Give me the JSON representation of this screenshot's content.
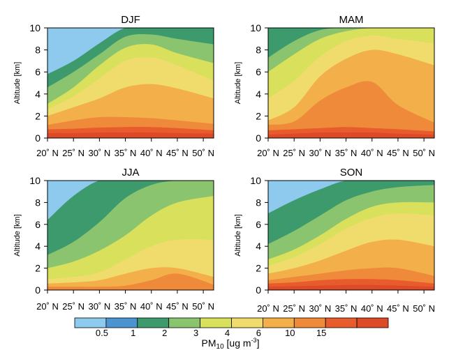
{
  "chart_data": [
    {
      "type": "heatmap",
      "title": "DJF",
      "ylabel": "Altitude [km]",
      "xlabel": "",
      "x_tick_labels": [
        "20˚ N",
        "25˚ N",
        "30˚ N",
        "35˚ N",
        "40˚ N",
        "45˚ N",
        "50˚ N"
      ],
      "y_tick_labels": [
        "0",
        "2",
        "4",
        "6",
        "8",
        "10"
      ],
      "xlim": [
        20,
        52
      ],
      "ylim": [
        0,
        10
      ],
      "x": [
        20,
        25,
        30,
        35,
        40,
        45,
        52
      ],
      "contour_heights_km": [
        [
          0.45,
          0.45,
          0.5,
          0.5,
          0.5,
          0.45,
          0.4
        ],
        [
          0.8,
          0.85,
          0.95,
          1.0,
          1.0,
          0.9,
          0.7
        ],
        [
          1.2,
          1.6,
          1.9,
          1.9,
          1.8,
          1.6,
          1.3
        ],
        [
          2.0,
          2.8,
          3.6,
          4.6,
          4.9,
          4.5,
          3.6
        ],
        [
          2.6,
          3.8,
          5.4,
          7.0,
          7.3,
          6.6,
          5.2
        ],
        [
          3.1,
          4.6,
          6.6,
          8.2,
          8.5,
          7.7,
          6.8
        ],
        [
          4.6,
          6.0,
          7.6,
          9.2,
          9.4,
          9.0,
          8.5
        ],
        [
          5.8,
          7.0,
          8.6,
          10.0,
          10.0,
          10.0,
          10.0
        ]
      ]
    },
    {
      "type": "heatmap",
      "title": "MAM",
      "ylabel": "Altitude [km]",
      "xlabel": "",
      "x_tick_labels": [
        "20˚ N",
        "25˚ N",
        "30˚ N",
        "35˚ N",
        "40˚ N",
        "45˚ N",
        "50˚ N"
      ],
      "y_tick_labels": [
        "0",
        "2",
        "4",
        "6",
        "8",
        "10"
      ],
      "xlim": [
        20,
        52
      ],
      "ylim": [
        0,
        10
      ],
      "x": [
        20,
        25,
        30,
        35,
        40,
        45,
        52
      ],
      "contour_heights_km": [
        [
          0.3,
          0.4,
          0.5,
          0.5,
          0.5,
          0.4,
          0.3
        ],
        [
          0.7,
          0.8,
          0.9,
          1.0,
          0.9,
          0.8,
          0.6
        ],
        [
          1.2,
          1.5,
          3.4,
          4.6,
          5.1,
          3.0,
          1.4
        ],
        [
          1.6,
          2.8,
          5.6,
          7.2,
          8.0,
          7.6,
          6.6
        ],
        [
          3.6,
          5.2,
          7.4,
          8.8,
          9.3,
          9.0,
          8.6
        ],
        [
          6.0,
          7.6,
          9.0,
          9.7,
          10.0,
          10.0,
          10.0
        ],
        [
          7.3,
          8.8,
          9.8,
          10.0,
          10.0,
          10.0,
          10.0
        ],
        [
          10.0,
          10.0,
          10.0,
          10.0,
          10.0,
          10.0,
          10.0
        ]
      ]
    },
    {
      "type": "heatmap",
      "title": "JJA",
      "ylabel": "Altitude [km]",
      "xlabel": "",
      "x_tick_labels": [
        "20˚ N",
        "25˚ N",
        "30˚ N",
        "35˚ N",
        "40˚ N",
        "45˚ N",
        "50˚ N"
      ],
      "y_tick_labels": [
        "0",
        "2",
        "4",
        "6",
        "8",
        "10"
      ],
      "xlim": [
        20,
        52
      ],
      "ylim": [
        0,
        10
      ],
      "x": [
        20,
        25,
        30,
        35,
        40,
        45,
        52
      ],
      "contour_heights_km": [
        [
          0.0,
          0.0,
          0.0,
          0.0,
          0.0,
          0.0,
          0.0
        ],
        [
          0.0,
          0.0,
          0.0,
          0.0,
          0.0,
          0.0,
          0.0
        ],
        [
          0.3,
          0.3,
          0.3,
          0.4,
          0.9,
          1.5,
          0.5
        ],
        [
          0.6,
          0.7,
          0.9,
          1.5,
          2.0,
          2.0,
          1.2
        ],
        [
          1.0,
          1.2,
          1.6,
          2.8,
          4.0,
          4.6,
          4.6
        ],
        [
          2.0,
          2.6,
          3.6,
          5.0,
          6.8,
          8.0,
          8.6
        ],
        [
          3.2,
          4.4,
          6.2,
          8.4,
          9.6,
          10.0,
          10.0
        ],
        [
          6.4,
          8.6,
          10.0,
          10.0,
          10.0,
          10.0,
          10.0
        ]
      ]
    },
    {
      "type": "heatmap",
      "title": "SON",
      "ylabel": "Altitude [km]",
      "xlabel": "",
      "x_tick_labels": [
        "20˚ N",
        "25˚ N",
        "30˚ N",
        "35˚ N",
        "40˚ N",
        "45˚ N",
        "50˚ N"
      ],
      "y_tick_labels": [
        "0",
        "2",
        "4",
        "6",
        "8",
        "10"
      ],
      "xlim": [
        20,
        52
      ],
      "ylim": [
        0,
        10
      ],
      "x": [
        20,
        25,
        30,
        35,
        40,
        45,
        52
      ],
      "contour_heights_km": [
        [
          0.3,
          0.35,
          0.4,
          0.45,
          0.45,
          0.4,
          0.3
        ],
        [
          0.6,
          0.7,
          0.9,
          1.0,
          1.0,
          0.9,
          0.6
        ],
        [
          0.9,
          1.2,
          1.5,
          1.8,
          2.0,
          2.0,
          1.3
        ],
        [
          1.5,
          2.0,
          2.7,
          3.6,
          4.4,
          4.6,
          4.0
        ],
        [
          2.2,
          3.0,
          4.2,
          5.6,
          6.6,
          7.0,
          6.8
        ],
        [
          2.8,
          3.7,
          5.0,
          6.5,
          7.6,
          8.0,
          8.0
        ],
        [
          4.2,
          5.4,
          6.8,
          8.2,
          9.0,
          9.4,
          9.6
        ],
        [
          7.0,
          8.2,
          9.2,
          10.0,
          10.0,
          10.0,
          10.0
        ]
      ]
    }
  ],
  "colorbar": {
    "tick_labels": [
      "0.5",
      "1",
      "2",
      "3",
      "4",
      "6",
      "10",
      "15"
    ],
    "label_main": "PM",
    "label_sub": "10",
    "label_units": "[ug m",
    "label_exp": "-3",
    "label_close": "]",
    "colors": [
      "#8ec9ee",
      "#4b94d0",
      "#3d9a6c",
      "#8bc46e",
      "#d8e05c",
      "#f0dc6c",
      "#f3b04a",
      "#ef8a3a",
      "#e85b2c",
      "#dc4a28"
    ]
  }
}
